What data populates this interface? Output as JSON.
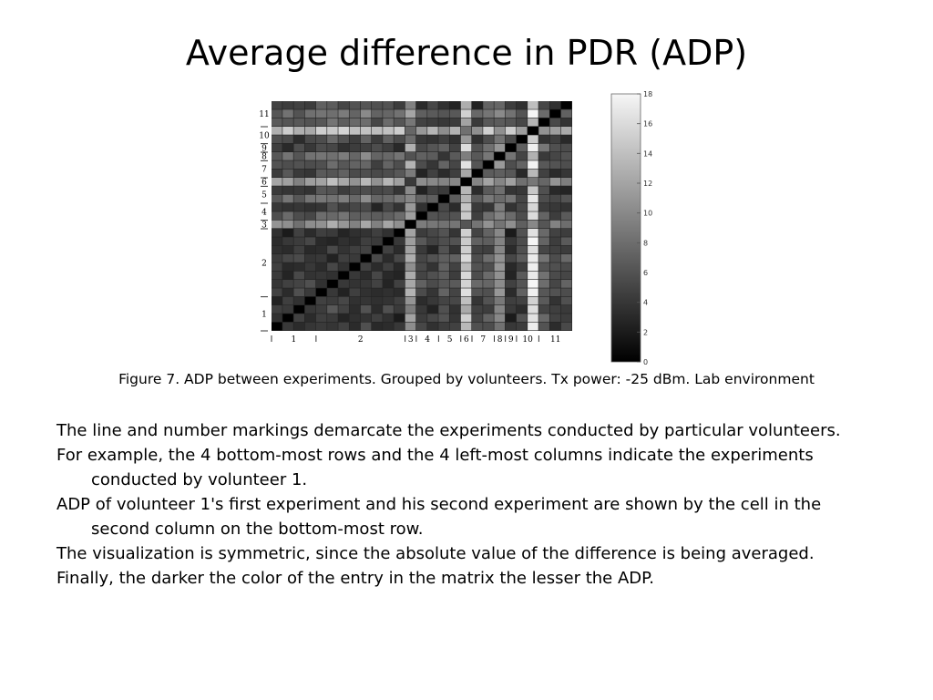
{
  "slide": {
    "title": "Average difference in PDR (ADP)",
    "caption": "Figure 7. ADP between experiments. Grouped by volunteers. Tx power: -25 dBm. Lab environment",
    "paragraphs": [
      "The line and number markings demarcate the experiments conducted by particular volunteers.",
      "For example, the 4 bottom-most rows and the 4 left-most columns indicate the experiments conducted by volunteer 1.",
      "ADP of volunteer 1's first experiment and his second experiment are shown by the cell in the second column on the bottom-most row.",
      "The visualization is symmetric, since the absolute value of the difference is being averaged.",
      "Finally, the darker the color of the entry in the matrix the lesser the ADP."
    ]
  },
  "chart_data": {
    "type": "heatmap",
    "size": 27,
    "volunteer_labels": [
      "1",
      "2",
      "3",
      "4",
      "5",
      "6",
      "7",
      "8",
      "9",
      "10",
      "11"
    ],
    "volunteer_bounds": [
      [
        0,
        3
      ],
      [
        4,
        11
      ],
      [
        12,
        12
      ],
      [
        13,
        14
      ],
      [
        15,
        16
      ],
      [
        17,
        17
      ],
      [
        18,
        19
      ],
      [
        20,
        20
      ],
      [
        21,
        21
      ],
      [
        22,
        23
      ],
      [
        24,
        26
      ]
    ],
    "colorbar": {
      "min": 0,
      "max": 18,
      "ticks": [
        0,
        2,
        4,
        6,
        8,
        10,
        12,
        14,
        16,
        18
      ]
    },
    "experiment_level": [
      3.5,
      3,
      4,
      3.5,
      2.5,
      2,
      2.5,
      3,
      2,
      3.5,
      2.5,
      3,
      9,
      4.5,
      4,
      5.5,
      4.5,
      10,
      5,
      4,
      7,
      3,
      5,
      11,
      6,
      4.5,
      5
    ],
    "row_extra": [
      0,
      0,
      0,
      0,
      0,
      0,
      0,
      0,
      0,
      0,
      0,
      0,
      0,
      2,
      0,
      2,
      0,
      0,
      0,
      2,
      0,
      1,
      0,
      1,
      0,
      3,
      0
    ],
    "col_extra": [
      0,
      0,
      0,
      0,
      0,
      0,
      0,
      0,
      0,
      0,
      0,
      0,
      1,
      0,
      0,
      0,
      0,
      3,
      0,
      2,
      2,
      0,
      0,
      4,
      0,
      0,
      0
    ]
  }
}
